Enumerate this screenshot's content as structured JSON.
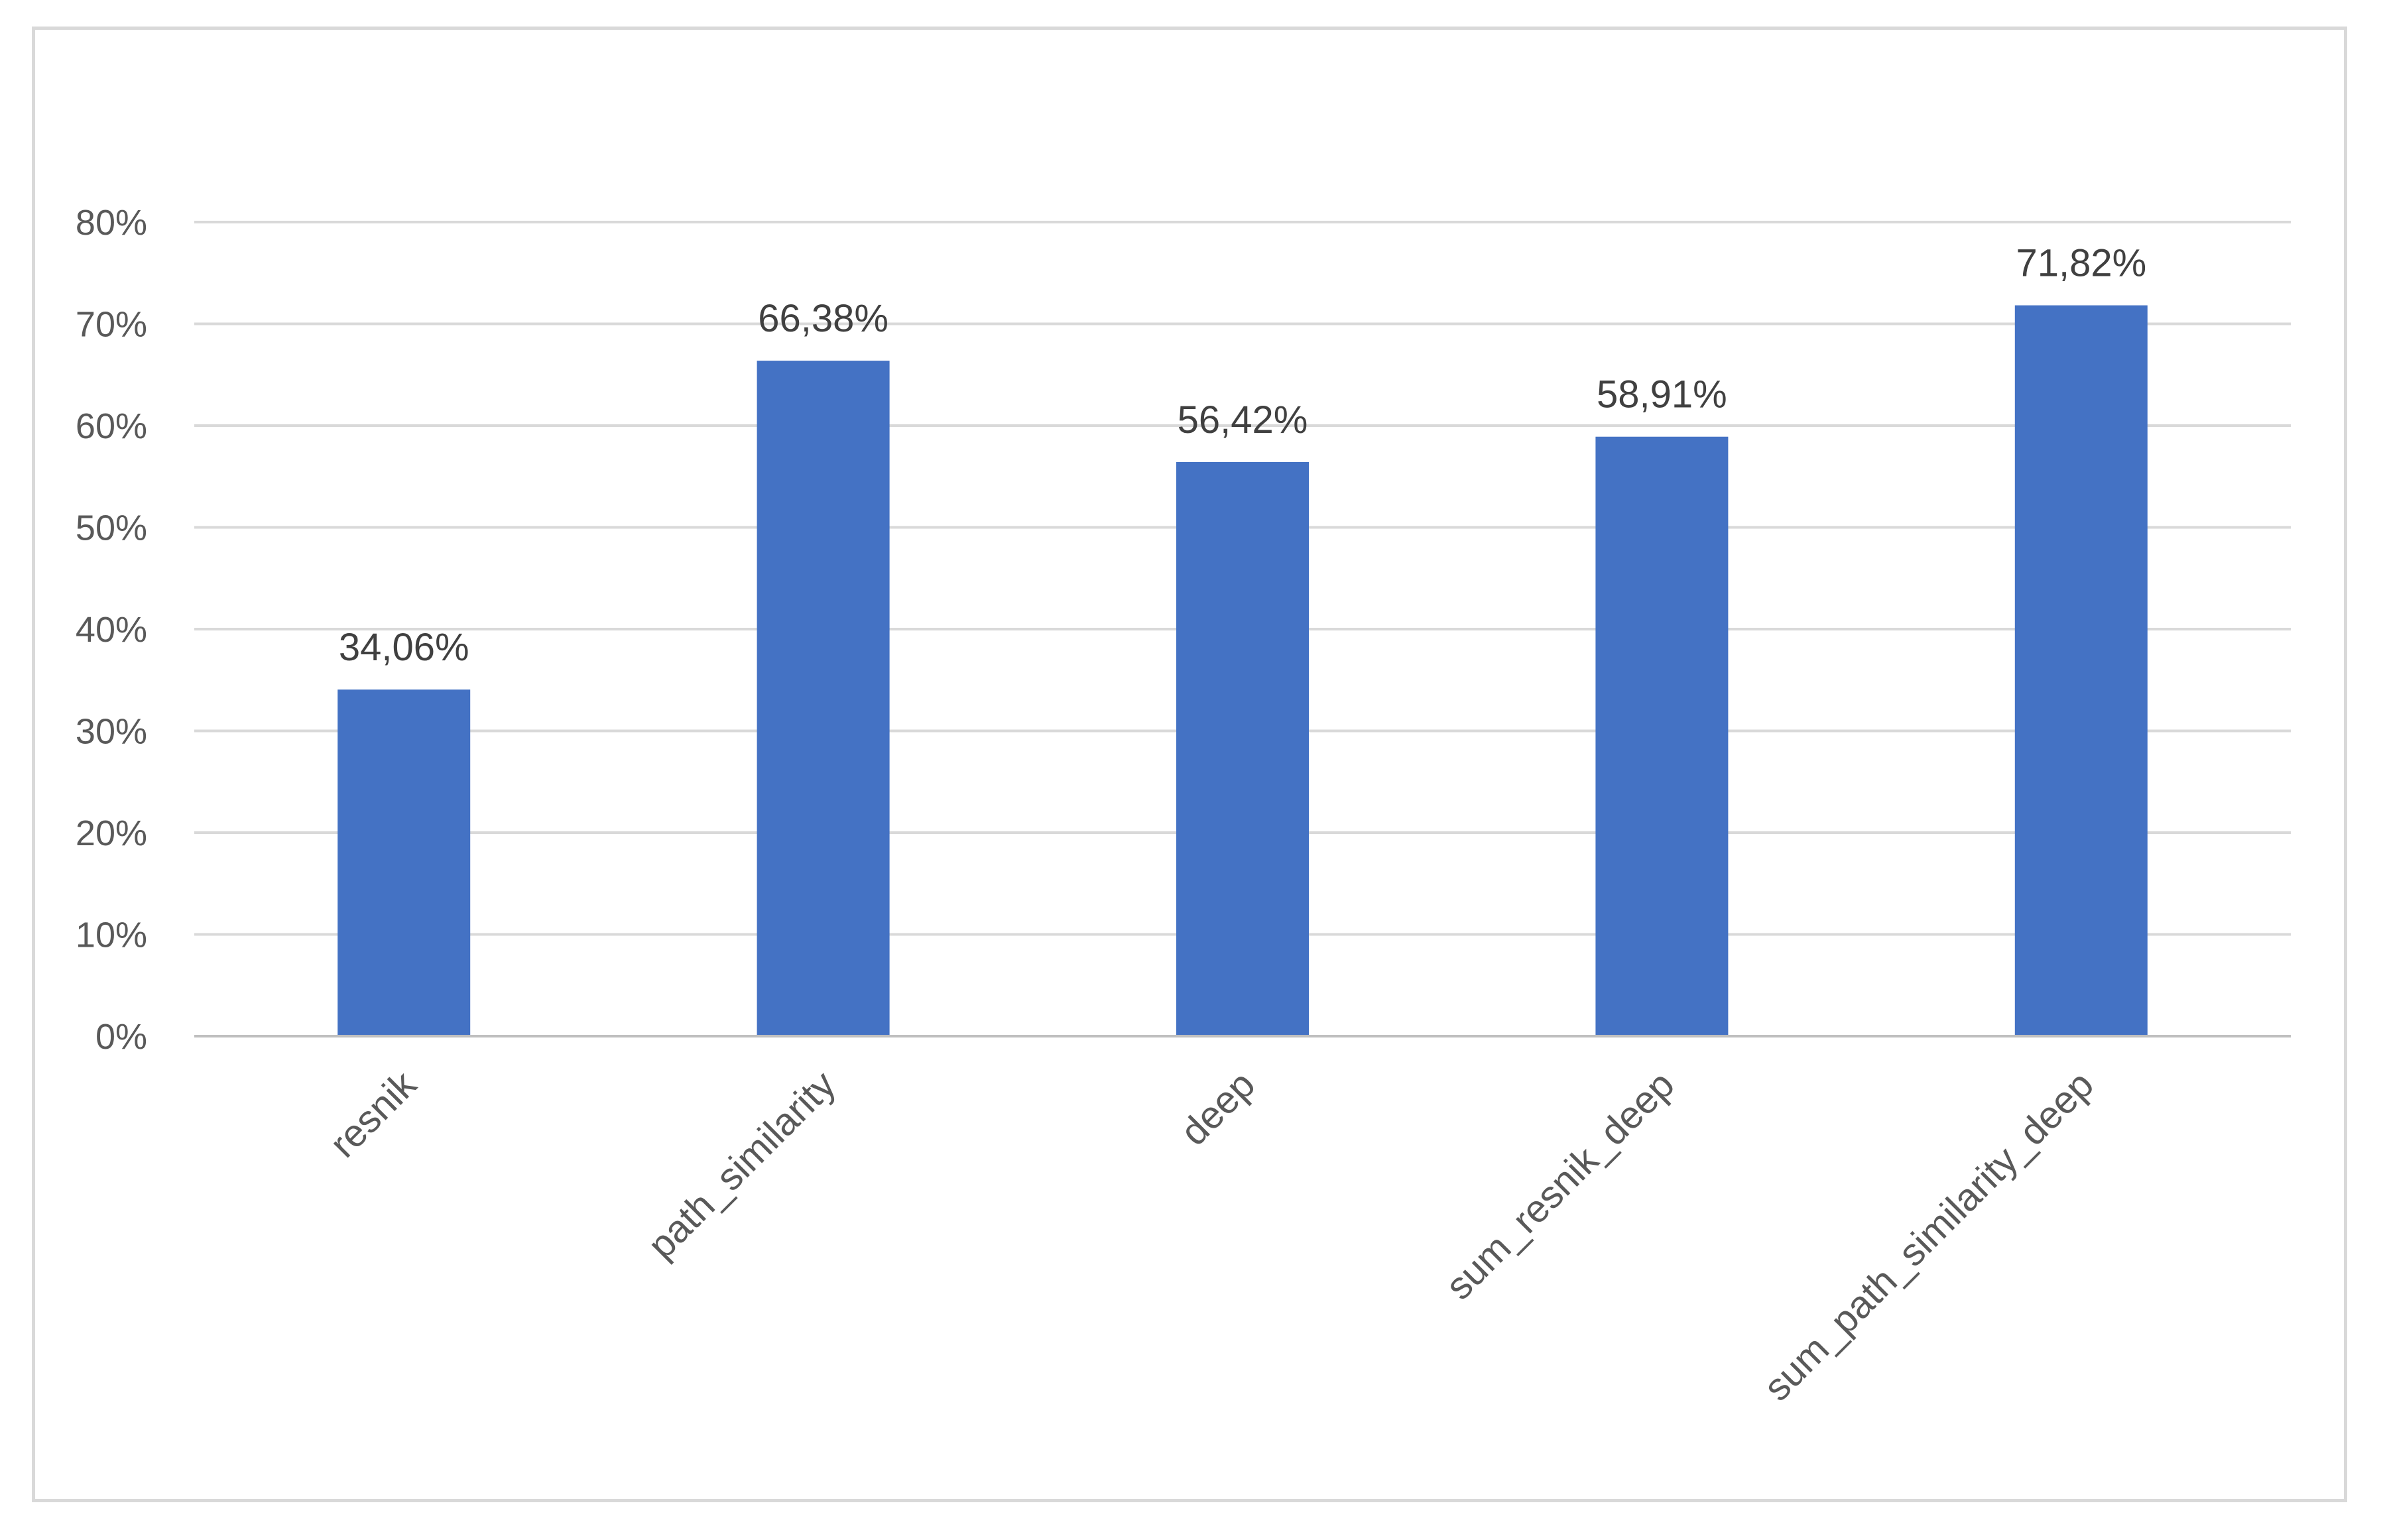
{
  "chart_data": {
    "type": "bar",
    "title": "",
    "xlabel": "",
    "ylabel": "",
    "categories": [
      "resnik",
      "path_similarity",
      "deep",
      "sum_resnik_deep",
      "sum_path_similarity_deep"
    ],
    "values": [
      34.06,
      66.38,
      56.42,
      58.91,
      71.82
    ],
    "value_labels": [
      "34,06%",
      "66,38%",
      "56,42%",
      "58,91%",
      "71,82%"
    ],
    "ylim": [
      0,
      80
    ],
    "y_ticks": [
      0,
      10,
      20,
      30,
      40,
      50,
      60,
      70,
      80
    ],
    "y_tick_labels": [
      "0%",
      "10%",
      "20%",
      "30%",
      "40%",
      "50%",
      "60%",
      "70%",
      "80%"
    ],
    "grid": true,
    "legend": "none",
    "colors": {
      "bar": "#4472C4",
      "grid": "#d9d9d9",
      "axis": "#bfbfbf",
      "text": "#595959",
      "frame": "#d9d9d9"
    }
  }
}
